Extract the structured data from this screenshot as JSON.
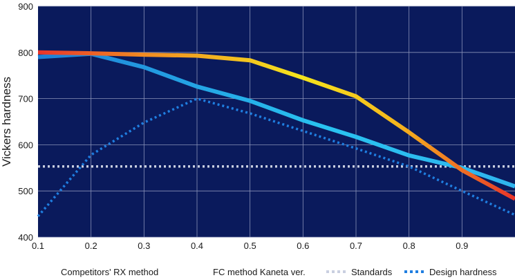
{
  "chart_data": {
    "type": "line",
    "xlabel": "",
    "ylabel": "Vickers hardness",
    "xlim": [
      0.1,
      1.0
    ],
    "ylim": [
      400,
      900
    ],
    "x_ticks": [
      "0.1",
      "0.2",
      "0.3",
      "0.4",
      "0.5",
      "0.6",
      "0.7",
      "0.8",
      "0.9"
    ],
    "y_ticks": [
      "400",
      "500",
      "600",
      "700",
      "800",
      "900"
    ],
    "grid": true,
    "legend_position": "bottom",
    "plot_background": "#0a1a5c",
    "grid_color": "#8a93b8",
    "series": [
      {
        "name": "Competitors' RX method",
        "style": "solid-gradient-blue",
        "colors": [
          "#1e7fd6",
          "#29c3f0"
        ],
        "x": [
          0.1,
          0.2,
          0.3,
          0.4,
          0.5,
          0.6,
          0.7,
          0.8,
          0.9,
          1.0
        ],
        "y": [
          790,
          797,
          768,
          726,
          695,
          653,
          617,
          577,
          550,
          510
        ]
      },
      {
        "name": "FC method Kaneta ver.",
        "style": "solid-gradient-warm",
        "colors": [
          "#e8342a",
          "#f7a21b",
          "#f5e51d"
        ],
        "x": [
          0.1,
          0.2,
          0.3,
          0.4,
          0.5,
          0.6,
          0.7,
          0.8,
          0.9,
          1.0
        ],
        "y": [
          800,
          798,
          795,
          793,
          783,
          745,
          705,
          627,
          545,
          483
        ]
      },
      {
        "name": "Standards",
        "style": "dotted",
        "colors": [
          "#c9cfe0"
        ],
        "x": [
          0.1,
          1.0
        ],
        "y": [
          553,
          553
        ]
      },
      {
        "name": "Design hardness",
        "style": "dotted",
        "colors": [
          "#1f7ee0"
        ],
        "x": [
          0.1,
          0.2,
          0.3,
          0.4,
          0.5,
          0.6,
          0.7,
          0.8,
          0.9,
          1.0
        ],
        "y": [
          445,
          578,
          648,
          700,
          668,
          630,
          592,
          553,
          500,
          448
        ]
      }
    ]
  }
}
